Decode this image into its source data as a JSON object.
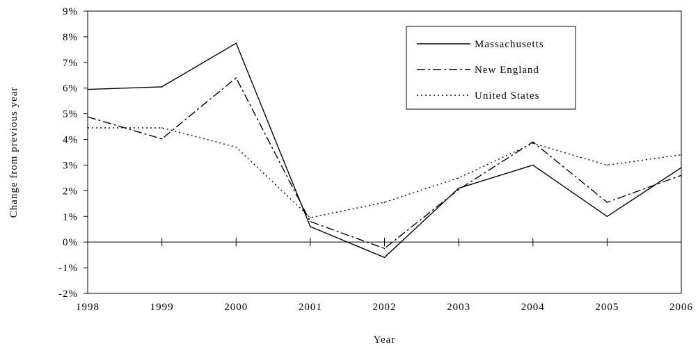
{
  "chart_data": {
    "type": "line",
    "xlabel": "Year",
    "ylabel": "Change from previous year",
    "x": [
      "1998",
      "1999",
      "2000",
      "2001",
      "2002",
      "2003",
      "2004",
      "2005",
      "2006"
    ],
    "y_ticks": [
      "-2%",
      "-1%",
      "0%",
      "1%",
      "2%",
      "3%",
      "4%",
      "5%",
      "6%",
      "7%",
      "8%",
      "9%"
    ],
    "ylim": [
      -2,
      9
    ],
    "grid": false,
    "zero_line": true,
    "legend_position": "top-right",
    "series": [
      {
        "name": "Massachusetts",
        "style": "solid",
        "values": [
          5.95,
          6.05,
          7.75,
          0.6,
          -0.6,
          2.1,
          3.0,
          1.0,
          2.9
        ]
      },
      {
        "name": "New England",
        "style": "dashdot",
        "values": [
          4.88,
          4.02,
          6.4,
          0.8,
          -0.25,
          2.05,
          3.9,
          1.55,
          2.6
        ]
      },
      {
        "name": "United States",
        "style": "dotted",
        "values": [
          4.45,
          4.45,
          3.7,
          0.95,
          1.55,
          2.5,
          3.85,
          3.0,
          3.4
        ]
      }
    ]
  }
}
